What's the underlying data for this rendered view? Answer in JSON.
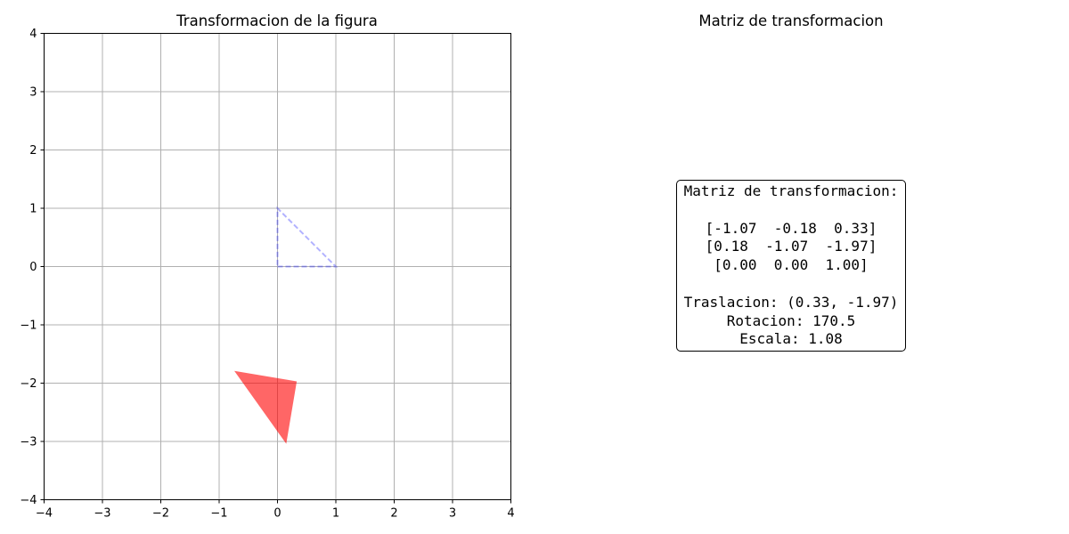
{
  "chart_data": [
    {
      "type": "scatter",
      "title": "Transformacion de la figura",
      "xlim": [
        -4,
        4
      ],
      "ylim": [
        -4,
        4
      ],
      "x_ticks": [
        -4,
        -3,
        -2,
        -1,
        0,
        1,
        2,
        3,
        4
      ],
      "y_ticks": [
        -4,
        -3,
        -2,
        -1,
        0,
        1,
        2,
        3,
        4
      ],
      "x_tick_labels": [
        "−4",
        "−3",
        "−2",
        "−1",
        "0",
        "1",
        "2",
        "3",
        "4"
      ],
      "y_tick_labels": [
        "−4",
        "−3",
        "−2",
        "−1",
        "0",
        "1",
        "2",
        "3",
        "4"
      ],
      "grid": true,
      "original_shape": {
        "points": [
          [
            0,
            0
          ],
          [
            1,
            0
          ],
          [
            0,
            1
          ]
        ],
        "style": "dashed",
        "color": "#0000ff",
        "alpha": 0.3
      },
      "transformed_shape": {
        "points": [
          [
            0.33,
            -1.97
          ],
          [
            -0.74,
            -1.79
          ],
          [
            0.15,
            -3.04
          ]
        ],
        "style": "filled",
        "color": "#ff0000",
        "alpha": 0.6
      }
    },
    {
      "type": "table",
      "title": "Matriz de transformacion",
      "text_lines": [
        "Matriz de transformacion:",
        "",
        "[-1.07  -0.18  0.33]",
        "[0.18  -1.07  -1.97]",
        "[0.00  0.00  1.00]",
        "",
        "Traslacion: (0.33, -1.97)",
        "Rotacion: 170.5",
        "Escala: 1.08"
      ],
      "matrix": [
        [
          -1.07,
          -0.18,
          0.33
        ],
        [
          0.18,
          -1.07,
          -1.97
        ],
        [
          0.0,
          0.0,
          1.0
        ]
      ],
      "translation": [
        0.33,
        -1.97
      ],
      "rotation": 170.5,
      "scale": 1.08
    }
  ]
}
